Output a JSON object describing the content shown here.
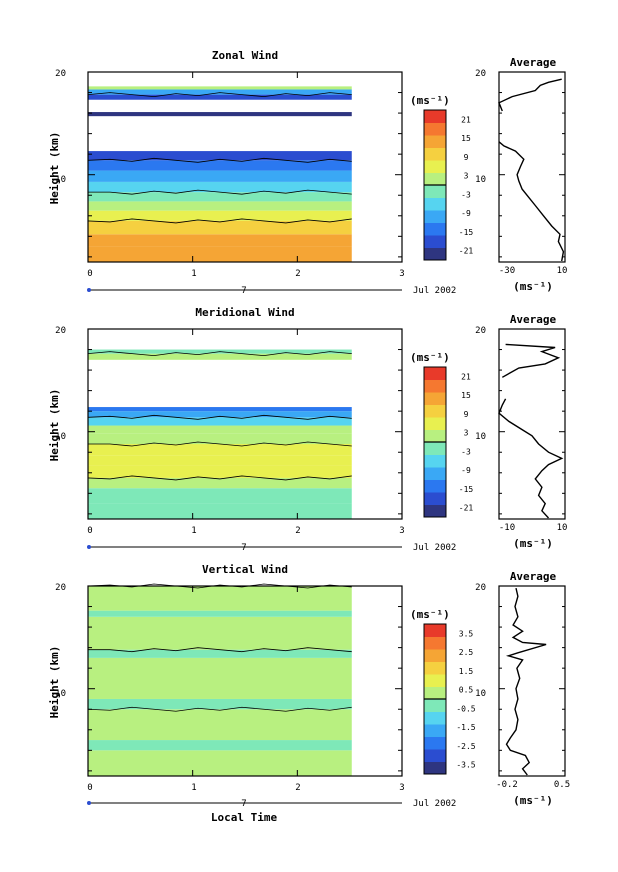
{
  "figure": {
    "shared_xlabel": "Local Time",
    "date_label": "Jul 2002",
    "day_marker": "7",
    "profile_title": "Average",
    "unit_label": "(ms⁻¹)"
  },
  "chart_data": [
    {
      "type": "heatmap",
      "title": "Zonal Wind",
      "xlabel": "",
      "ylabel": "Height (km)",
      "x_ticks": [
        "0",
        "1",
        "2",
        "3"
      ],
      "y_ticks": [
        "10",
        "20"
      ],
      "xlim": [
        0,
        3
      ],
      "ylim": [
        1.5,
        20
      ],
      "colorbar": {
        "label": "(ms⁻¹)",
        "ticks": [
          "21",
          "15",
          "9",
          "3",
          "-3",
          "-9",
          "-15",
          "-21"
        ],
        "range": [
          -24,
          24
        ],
        "colors": [
          "#2e3580",
          "#2b4dd0",
          "#2b78f0",
          "#3aa8f5",
          "#56d4f0",
          "#7ee8b8",
          "#b8f080",
          "#e8f050",
          "#f5d040",
          "#f5a535",
          "#f57830",
          "#e83a2a"
        ]
      },
      "bands": [
        {
          "y0": 1.5,
          "y1": 3.0,
          "v": 14
        },
        {
          "y0": 3.0,
          "y1": 4.2,
          "v": 12
        },
        {
          "y0": 4.2,
          "y1": 5.5,
          "v": 9
        },
        {
          "y0": 5.5,
          "y1": 6.5,
          "v": 6
        },
        {
          "y0": 6.5,
          "y1": 7.4,
          "v": 1
        },
        {
          "y0": 7.4,
          "y1": 8.3,
          "v": -3
        },
        {
          "y0": 8.3,
          "y1": 9.3,
          "v": -8
        },
        {
          "y0": 9.3,
          "y1": 10.4,
          "v": -12
        },
        {
          "y0": 10.4,
          "y1": 11.4,
          "v": -16
        },
        {
          "y0": 11.4,
          "y1": 12.3,
          "v": -20
        },
        {
          "y0": 15.7,
          "y1": 16.1,
          "v": -21
        },
        {
          "y0": 17.3,
          "y1": 17.8,
          "v": -18
        },
        {
          "y0": 17.8,
          "y1": 18.3,
          "v": -10
        },
        {
          "y0": 18.3,
          "y1": 18.6,
          "v": 0
        }
      ],
      "profile": {
        "xlim": [
          -30,
          10
        ],
        "x_ticks": [
          "-30",
          "10"
        ],
        "xlabel": "(ms⁻¹)",
        "title": "Average",
        "points": [
          {
            "v": 8,
            "h": 1.6
          },
          {
            "v": 9,
            "h": 2.5
          },
          {
            "v": 6,
            "h": 3.5
          },
          {
            "v": 7,
            "h": 4.2
          },
          {
            "v": 2,
            "h": 5.0
          },
          {
            "v": -3,
            "h": 6.0
          },
          {
            "v": -8,
            "h": 7.0
          },
          {
            "v": -12,
            "h": 7.8
          },
          {
            "v": -16,
            "h": 8.6
          },
          {
            "v": -18,
            "h": 9.4
          },
          {
            "v": -19,
            "h": 10.0
          },
          {
            "v": -17,
            "h": 10.8
          },
          {
            "v": -15,
            "h": 11.5
          },
          {
            "v": -20,
            "h": 12.3
          },
          {
            "v": -27,
            "h": 12.8
          },
          {
            "v": -30,
            "h": 13.2
          }
        ],
        "points_upper": [
          {
            "v": -28,
            "h": 16.2
          },
          {
            "v": -30,
            "h": 17.0
          },
          {
            "v": -22,
            "h": 17.6
          },
          {
            "v": -8,
            "h": 18.2
          },
          {
            "v": -5,
            "h": 18.7
          },
          {
            "v": 0,
            "h": 19.0
          },
          {
            "v": 8,
            "h": 19.3
          }
        ]
      }
    },
    {
      "type": "heatmap",
      "title": "Meridional Wind",
      "xlabel": "",
      "ylabel": "Height (km)",
      "x_ticks": [
        "0",
        "1",
        "2",
        "3"
      ],
      "y_ticks": [
        "10",
        "20"
      ],
      "xlim": [
        0,
        3
      ],
      "ylim": [
        1.5,
        20
      ],
      "colorbar": {
        "label": "(ms⁻¹)",
        "ticks": [
          "21",
          "15",
          "9",
          "3",
          "-3",
          "-9",
          "-15",
          "-21"
        ],
        "range": [
          -24,
          24
        ],
        "colors": [
          "#2e3580",
          "#2b4dd0",
          "#2b78f0",
          "#3aa8f5",
          "#56d4f0",
          "#7ee8b8",
          "#b8f080",
          "#e8f050",
          "#f5d040",
          "#f5a535",
          "#f57830",
          "#e83a2a"
        ]
      },
      "bands": [
        {
          "y0": 1.5,
          "y1": 3.0,
          "v": -3
        },
        {
          "y0": 3.0,
          "y1": 4.5,
          "v": -1
        },
        {
          "y0": 4.5,
          "y1": 5.5,
          "v": 1
        },
        {
          "y0": 5.5,
          "y1": 6.7,
          "v": 4
        },
        {
          "y0": 6.7,
          "y1": 7.7,
          "v": 6
        },
        {
          "y0": 7.7,
          "y1": 8.8,
          "v": 5
        },
        {
          "y0": 8.8,
          "y1": 9.8,
          "v": 3
        },
        {
          "y0": 9.8,
          "y1": 10.6,
          "v": 0
        },
        {
          "y0": 10.6,
          "y1": 11.4,
          "v": -6
        },
        {
          "y0": 11.4,
          "y1": 12.0,
          "v": -12
        },
        {
          "y0": 12.0,
          "y1": 12.4,
          "v": -16
        },
        {
          "y0": 17.0,
          "y1": 17.6,
          "v": 0
        },
        {
          "y0": 17.6,
          "y1": 18.0,
          "v": -3
        }
      ],
      "profile": {
        "xlim": [
          -10,
          10
        ],
        "x_ticks": [
          "-10",
          "10"
        ],
        "xlabel": "(ms⁻¹)",
        "title": "Average",
        "points": [
          {
            "v": 5,
            "h": 1.6
          },
          {
            "v": 3,
            "h": 2.3
          },
          {
            "v": 4,
            "h": 3.0
          },
          {
            "v": 2,
            "h": 3.8
          },
          {
            "v": 3,
            "h": 4.6
          },
          {
            "v": 1,
            "h": 5.4
          },
          {
            "v": 3,
            "h": 6.2
          },
          {
            "v": 5,
            "h": 6.8
          },
          {
            "v": 9,
            "h": 7.4
          },
          {
            "v": 5,
            "h": 8.0
          },
          {
            "v": 2,
            "h": 8.8
          },
          {
            "v": 0,
            "h": 9.6
          },
          {
            "v": -3,
            "h": 10.2
          },
          {
            "v": -7,
            "h": 11.0
          },
          {
            "v": -10,
            "h": 11.8
          },
          {
            "v": -9,
            "h": 12.6
          },
          {
            "v": -8,
            "h": 13.2
          }
        ],
        "points_upper": [
          {
            "v": -9,
            "h": 15.3
          },
          {
            "v": -4,
            "h": 16.2
          },
          {
            "v": 4,
            "h": 16.6
          },
          {
            "v": 8,
            "h": 17.2
          },
          {
            "v": 3,
            "h": 17.8
          },
          {
            "v": 7,
            "h": 18.2
          },
          {
            "v": -8,
            "h": 18.5
          }
        ]
      }
    },
    {
      "type": "heatmap",
      "title": "Vertical Wind",
      "xlabel": "Local Time",
      "ylabel": "Height (km)",
      "x_ticks": [
        "0",
        "1",
        "2",
        "3"
      ],
      "y_ticks": [
        "10",
        "20"
      ],
      "xlim": [
        0,
        3
      ],
      "ylim": [
        1.5,
        20
      ],
      "colorbar": {
        "label": "(ms⁻¹)",
        "ticks": [
          "3.5",
          "2.5",
          "1.5",
          "0.5",
          "-0.5",
          "-1.5",
          "-2.5",
          "-3.5"
        ],
        "range": [
          -4,
          4
        ],
        "colors": [
          "#2e3580",
          "#2b4dd0",
          "#2b78f0",
          "#3aa8f5",
          "#56d4f0",
          "#7ee8b8",
          "#b8f080",
          "#e8f050",
          "#f5d040",
          "#f5a535",
          "#f57830",
          "#e83a2a"
        ]
      },
      "bands": [
        {
          "y0": 1.5,
          "y1": 4.0,
          "v": 0.1
        },
        {
          "y0": 4.0,
          "y1": 5.0,
          "v": -0.3
        },
        {
          "y0": 5.0,
          "y1": 8.0,
          "v": 0.1
        },
        {
          "y0": 8.0,
          "y1": 9.0,
          "v": -0.3
        },
        {
          "y0": 9.0,
          "y1": 13.0,
          "v": 0.1
        },
        {
          "y0": 13.0,
          "y1": 13.8,
          "v": -0.2
        },
        {
          "y0": 13.8,
          "y1": 17.0,
          "v": 0.1
        },
        {
          "y0": 17.0,
          "y1": 17.6,
          "v": -0.3
        },
        {
          "y0": 17.6,
          "y1": 20.0,
          "v": 0.1
        }
      ],
      "profile": {
        "xlim": [
          -0.2,
          0.5
        ],
        "x_ticks": [
          "-0.2",
          "0.5"
        ],
        "xlabel": "(ms⁻¹)",
        "title": "Average",
        "points": [
          {
            "v": 0.1,
            "h": 1.6
          },
          {
            "v": 0.05,
            "h": 2.2
          },
          {
            "v": 0.12,
            "h": 2.8
          },
          {
            "v": 0.08,
            "h": 3.5
          },
          {
            "v": -0.08,
            "h": 4.0
          },
          {
            "v": -0.12,
            "h": 4.6
          },
          {
            "v": -0.08,
            "h": 5.2
          },
          {
            "v": -0.02,
            "h": 6.0
          },
          {
            "v": 0.0,
            "h": 7.0
          },
          {
            "v": -0.03,
            "h": 8.0
          },
          {
            "v": 0.0,
            "h": 9.0
          },
          {
            "v": -0.02,
            "h": 10.0
          },
          {
            "v": 0.02,
            "h": 11.0
          },
          {
            "v": -0.01,
            "h": 12.0
          },
          {
            "v": 0.05,
            "h": 12.8
          },
          {
            "v": -0.1,
            "h": 13.2
          },
          {
            "v": 0.0,
            "h": 13.5
          },
          {
            "v": 0.3,
            "h": 14.3
          },
          {
            "v": 0.05,
            "h": 14.5
          },
          {
            "v": -0.05,
            "h": 15.0
          },
          {
            "v": 0.05,
            "h": 15.6
          },
          {
            "v": -0.05,
            "h": 16.2
          },
          {
            "v": 0.0,
            "h": 17.0
          },
          {
            "v": -0.03,
            "h": 18.0
          },
          {
            "v": 0.0,
            "h": 19.0
          },
          {
            "v": -0.02,
            "h": 19.8
          }
        ],
        "points_upper": []
      }
    }
  ]
}
